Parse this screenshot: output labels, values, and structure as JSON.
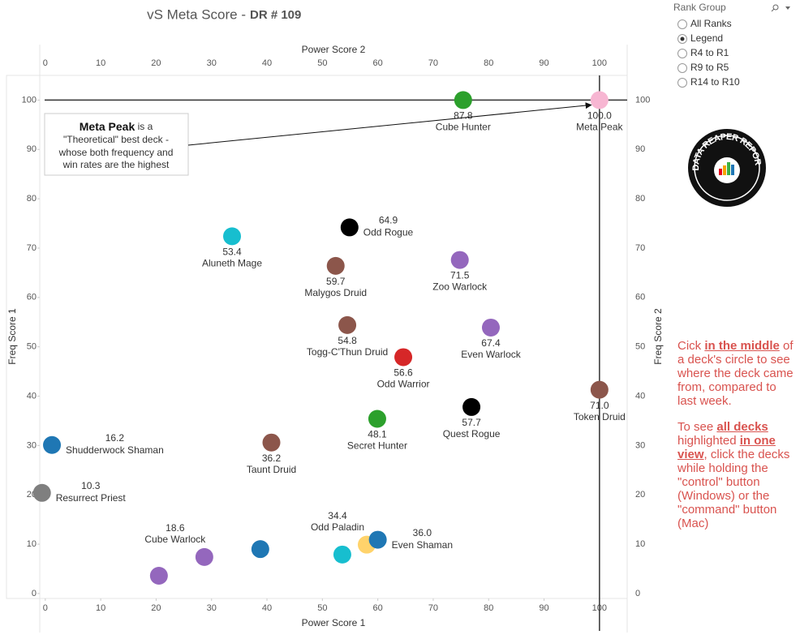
{
  "chart_data": {
    "type": "scatter",
    "title": "vS Meta Score -",
    "title_bold": "DR # 109",
    "xlabel": "Power Score 1",
    "x2label": "Power Score 2",
    "ylabel": "Freq Score 1",
    "y2label": "Freq Score 2",
    "xlim": [
      -1,
      105
    ],
    "ylim": [
      -1,
      105
    ],
    "xticks": [
      0,
      10,
      20,
      30,
      40,
      50,
      60,
      70,
      80,
      90,
      100
    ],
    "yticks": [
      0,
      10,
      20,
      30,
      40,
      50,
      60,
      70,
      80,
      90,
      100
    ],
    "grid": false,
    "reference_lines": {
      "x": 100,
      "y": 100
    },
    "x": [
      100,
      75.4,
      54.9,
      33.7,
      52.4,
      74.8,
      54.5,
      80.4,
      64.6,
      100,
      76.9,
      59.9,
      1.2,
      40.8,
      -0.6,
      28.7,
      58.0,
      60.0,
      20.5,
      38.8,
      53.6
    ],
    "values": [
      100,
      100,
      74.2,
      72.4,
      66.4,
      67.6,
      54.4,
      53.9,
      47.9,
      41.3,
      37.8,
      35.4,
      30.1,
      30.6,
      20.4,
      7.4,
      9.9,
      10.9,
      3.6,
      9.0,
      7.9
    ],
    "labels": [
      "Meta Peak",
      "Cube Hunter",
      "Odd Rogue",
      "Aluneth Mage",
      "Malygos Druid",
      "Zoo Warlock",
      "Togg-C'Thun Druid",
      "Even Warlock",
      "Odd Warrior",
      "Token Druid",
      "Quest Rogue",
      "Secret Hunter",
      "Shudderwock Shaman",
      "Taunt Druid",
      "Resurrect Priest",
      "Cube Warlock",
      "Odd Paladin",
      "Even Shaman",
      null,
      null,
      null
    ],
    "score_labels": [
      "100.0",
      "87.8",
      "64.9",
      "53.4",
      "59.7",
      "71.5",
      "54.8",
      "67.4",
      "56.6",
      "71.0",
      "57.7",
      "48.1",
      "16.2",
      "36.2",
      "10.3",
      "18.6",
      "34.4",
      "36.0",
      null,
      null,
      null
    ],
    "colors": [
      "#f7b6d2",
      "#2ca02c",
      "#000000",
      "#17becf",
      "#8c564b",
      "#9467bd",
      "#8c564b",
      "#9467bd",
      "#d62728",
      "#8c564b",
      "#000000",
      "#2ca02c",
      "#1f77b4",
      "#8c564b",
      "#7f7f7f",
      "#9467bd",
      "#ffd36b",
      "#1f77b4",
      "#9467bd",
      "#1f77b4",
      "#17becf"
    ],
    "annotation": {
      "title": "Meta Peak",
      "lines": [
        " is a",
        "\"Theoretical\" best deck -",
        "whose both frequency and",
        "win rates are the highest"
      ]
    }
  },
  "filter": {
    "title": "Rank Group",
    "options": [
      "All Ranks",
      "Legend",
      "R4 to R1",
      "R9 to R5",
      "R14 to R10"
    ],
    "selected": 1
  },
  "logo": {
    "text": "DATA REAPER REPORT"
  },
  "notes": [
    [
      {
        "text": "Cick "
      },
      {
        "text": "in the middle",
        "strong": true
      },
      {
        "text": " of a deck's circle to see where the deck came from, compared to last week."
      }
    ],
    [
      {
        "text": "To see "
      },
      {
        "text": "all decks",
        "strong": true
      },
      {
        "text": " highlighted "
      },
      {
        "text": "in one view",
        "strong": true
      },
      {
        "text": ", click the decks while holding the \"control\" button (Windows) or the \"command\" button (Mac)"
      }
    ]
  ]
}
